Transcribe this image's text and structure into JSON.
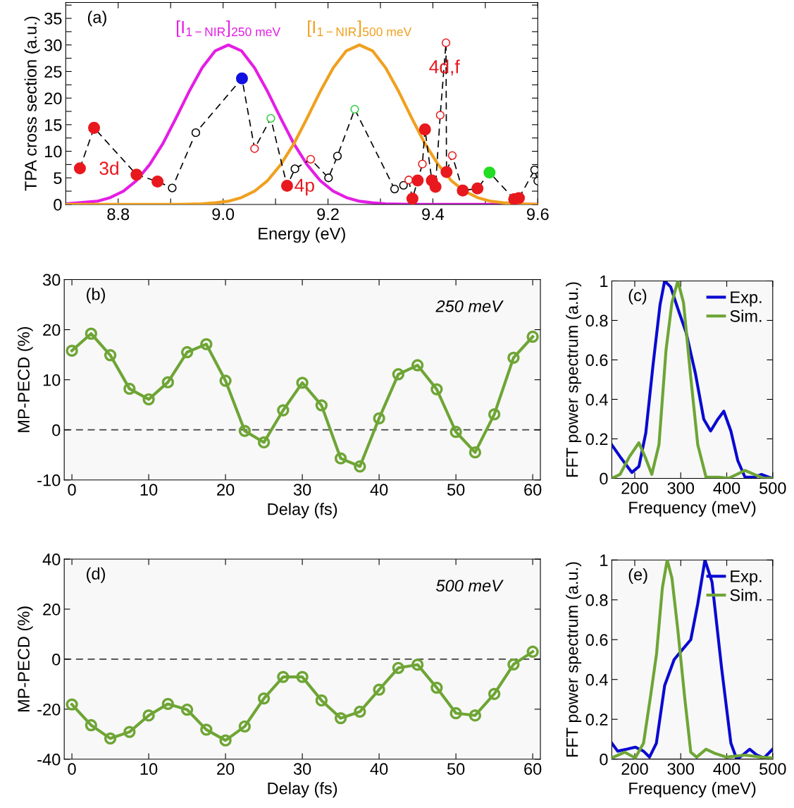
{
  "chart_data": [
    {
      "type": "line",
      "xlabel": "Energy (eV)",
      "ylabel": "TPA cross section (a.u.)",
      "xlim": [
        8.7,
        9.6
      ],
      "ylim": [
        0,
        38
      ],
      "xticks": [
        {
          "value": 8.8,
          "label": "8.8"
        },
        {
          "value": 8.9,
          "label": null
        },
        {
          "value": 9.0,
          "label": "9.0"
        },
        {
          "value": 9.1,
          "label": null
        },
        {
          "value": 9.2,
          "label": "9.2"
        },
        {
          "value": 9.3,
          "label": null
        },
        {
          "value": 9.4,
          "label": "9.4"
        },
        {
          "value": 9.5,
          "label": null
        },
        {
          "value": 9.6,
          "label": "9.6"
        }
      ],
      "yticks": [
        0,
        {
          "value": 2.5,
          "label": null
        },
        5,
        {
          "value": 7.5,
          "label": null
        },
        10,
        {
          "value": 12.5,
          "label": null
        },
        15,
        {
          "value": 17.5,
          "label": null
        },
        20,
        {
          "value": 22.5,
          "label": null
        },
        25,
        {
          "value": 27.5,
          "label": null
        },
        30,
        {
          "value": 32.5,
          "label": null
        },
        35,
        {
          "value": 37.5,
          "label": null
        }
      ],
      "legend": false,
      "annotations": [
        "(a)",
        "3d",
        "4p",
        "4d,f"
      ],
      "series": [
        {
          "name": "[I$_{1−NIR}$]$_{250 meV}$",
          "type": "line",
          "color": "#e41ee4",
          "line_style": "solid",
          "marker": "none",
          "x": [
            8.7,
            8.76,
            8.785,
            8.81,
            8.835,
            8.86,
            8.885,
            8.91,
            8.935,
            8.96,
            8.985,
            9.01,
            9.035,
            9.06,
            9.085,
            9.11,
            9.135,
            9.16,
            9.185,
            9.21,
            9.235,
            9.26,
            9.285,
            9.31,
            9.36,
            9.45,
            9.6
          ],
          "values": [
            0.1,
            0.6,
            1.3,
            2.5,
            4.5,
            7.5,
            11.4,
            16.2,
            21.2,
            25.7,
            28.9,
            30,
            28.9,
            25.7,
            21.2,
            16.2,
            11.4,
            7.5,
            4.5,
            2.5,
            1.3,
            0.6,
            0.3,
            0.1,
            0,
            0,
            0
          ]
        },
        {
          "name": "[I$_{1−NIR}$]$_{500 meV}$",
          "type": "line",
          "color": "#f0a01e",
          "line_style": "solid",
          "marker": "none",
          "x": [
            8.7,
            8.85,
            8.91,
            8.96,
            8.985,
            9.01,
            9.035,
            9.06,
            9.085,
            9.11,
            9.135,
            9.16,
            9.185,
            9.21,
            9.235,
            9.26,
            9.285,
            9.31,
            9.335,
            9.36,
            9.385,
            9.41,
            9.435,
            9.46,
            9.485,
            9.51,
            9.535,
            9.56,
            9.6
          ],
          "values": [
            0,
            0,
            0,
            0.1,
            0.3,
            0.6,
            1.3,
            2.5,
            4.5,
            7.5,
            11.4,
            16.2,
            21.2,
            25.7,
            28.9,
            30,
            28.9,
            25.7,
            21.2,
            16.2,
            11.4,
            7.5,
            4.5,
            2.5,
            1.3,
            0.6,
            0.3,
            0.1,
            0
          ]
        },
        {
          "type": "line",
          "color": "#000000",
          "line_style": "dashed",
          "marker": "circle",
          "x": [
            8.727,
            8.754,
            8.835,
            8.875,
            8.903,
            8.948,
            9.036,
            9.06,
            9.091,
            9.122,
            9.137,
            9.167,
            9.201,
            9.218,
            9.251,
            9.327,
            9.344,
            9.354,
            9.361,
            9.371,
            9.38,
            9.385,
            9.398,
            9.405,
            9.414,
            9.425,
            9.426,
            9.437,
            9.457,
            9.485,
            9.508,
            9.555,
            9.564,
            9.594,
            9.6
          ],
          "values": [
            6.8,
            14.4,
            5.6,
            4.3,
            3.1,
            13.5,
            23.7,
            10.5,
            16.2,
            3.5,
            6.7,
            8.5,
            5.0,
            9.1,
            17.9,
            2.9,
            3.6,
            4.6,
            1.1,
            4.5,
            7.6,
            14.1,
            4.5,
            3.3,
            16.8,
            30.4,
            6.1,
            9.2,
            2.6,
            3.0,
            6.0,
            1.0,
            1.2,
            6.5,
            4.4
          ],
          "colors": [
            "#e8191e",
            "#e8191e",
            "#e8191e",
            "#e8191e",
            "#000000",
            "#000000",
            "#1010e0",
            "#e8191e",
            "#2ecc40",
            "#e8191e",
            "#000000",
            "#e8191e",
            "#000000",
            "#000000",
            "#2ecc40",
            "#000000",
            "#000000",
            "#e8191e",
            "#e8191e",
            "#e8191e",
            "#e8191e",
            "#e8191e",
            "#e8191e",
            "#e8191e",
            "#e8191e",
            "#e8191e",
            "#e8191e",
            "#e8191e",
            "#e8191e",
            "#e8191e",
            "#22dd22",
            "#e8191e",
            "#e8191e",
            "#000000",
            "#000000"
          ]
        },
        {
          "type": "scatter",
          "color": "#e8191e",
          "marker": "circle",
          "x": [
            8.727,
            8.754,
            8.835,
            8.875,
            9.122,
            9.361,
            9.371,
            9.385,
            9.398,
            9.405,
            9.426,
            9.457,
            9.485,
            9.555,
            9.564
          ],
          "values": [
            6.8,
            14.4,
            5.6,
            4.3,
            3.5,
            1.1,
            4.5,
            14.1,
            4.5,
            3.3,
            6.1,
            2.6,
            3.0,
            1.0,
            1.2
          ]
        },
        {
          "type": "scatter",
          "color": "#22dd22",
          "marker": "circle",
          "x": [
            9.508
          ],
          "values": [
            6.0
          ]
        },
        {
          "type": "scatter",
          "color": "#1010e0",
          "marker": "circle",
          "x": [
            9.036
          ],
          "values": [
            23.7
          ]
        }
      ]
    },
    {
      "type": "line",
      "xlabel": "Delay (fs)",
      "ylabel": "MP-PECD (%)",
      "xlim": [
        -1,
        61
      ],
      "ylim": [
        -10,
        30
      ],
      "xticks": [
        0,
        10,
        20,
        30,
        40,
        50,
        60
      ],
      "yticks": [
        -10,
        0,
        10,
        20,
        30
      ],
      "marker": "circle",
      "line_style": "solid",
      "legend": false,
      "annotations": [
        "(b)",
        "250 meV"
      ],
      "ref_lines": [
        {
          "axis": "y",
          "value": 0,
          "color": "#404040",
          "line_style": "dashed"
        }
      ],
      "x": [
        0,
        2.5,
        5,
        7.5,
        10,
        12.5,
        15,
        17.5,
        20,
        22.5,
        25,
        27.5,
        30,
        32.5,
        35,
        37.5,
        40,
        42.5,
        45,
        47.5,
        50,
        52.5,
        55,
        57.5,
        60
      ],
      "series": [
        {
          "color": "#6ea535",
          "values": [
            15.8,
            19.2,
            14.9,
            8.2,
            6.1,
            9.5,
            15.5,
            17.1,
            9.8,
            -0.2,
            -2.5,
            3.9,
            9.4,
            4.9,
            -5.7,
            -7.3,
            2.3,
            11.1,
            12.9,
            8.1,
            -0.4,
            -4.5,
            3.1,
            14.4,
            18.6
          ]
        }
      ]
    },
    {
      "type": "line",
      "xlabel": "Frequency (meV)",
      "ylabel": "FFT power spectrum (a.u.)",
      "xlim": [
        150,
        500
      ],
      "ylim": [
        0,
        1
      ],
      "xticks": [
        200,
        300,
        400,
        500
      ],
      "yticks": [
        0,
        0.2,
        0.4,
        0.6,
        0.8,
        1
      ],
      "marker": "none",
      "line_style": "solid",
      "legend": "top right",
      "annotations": [
        "(c)"
      ],
      "series": [
        {
          "name": "Exp.",
          "color": "#0a0ad2",
          "x": [
            150,
            168,
            193.6,
            209,
            224,
            240,
            255,
            265,
            278,
            293.6,
            311.5,
            332,
            350,
            365,
            380.8,
            393.6,
            409,
            424,
            439.7,
            460,
            475.6,
            491,
            500
          ],
          "values": [
            0.17,
            0.11,
            0.03,
            0.06,
            0.23,
            0.58,
            0.88,
            1.0,
            0.97,
            0.86,
            0.74,
            0.53,
            0.3,
            0.24,
            0.3,
            0.34,
            0.24,
            0.09,
            0.006,
            0.006,
            0.02,
            0.006,
            0
          ]
        },
        {
          "name": "Sim.",
          "color": "#6ea535",
          "x": [
            150,
            168,
            188.5,
            209,
            224,
            237,
            252.6,
            268,
            280.8,
            293.6,
            306,
            321.8,
            337,
            355,
            383,
            404,
            421.8,
            439.7,
            460,
            480.8,
            500
          ],
          "values": [
            0,
            0.02,
            0.11,
            0.18,
            0.1,
            0.02,
            0.17,
            0.65,
            0.89,
            1.0,
            0.89,
            0.51,
            0.17,
            0.006,
            0.006,
            0,
            0.02,
            0.04,
            0.02,
            0,
            0
          ]
        }
      ]
    },
    {
      "type": "line",
      "xlabel": "Delay (fs)",
      "ylabel": "MP-PECD (%)",
      "xlim": [
        -1,
        61
      ],
      "ylim": [
        -40,
        40
      ],
      "xticks": [
        0,
        10,
        20,
        30,
        40,
        50,
        60
      ],
      "yticks": [
        -40,
        -20,
        0,
        20,
        40
      ],
      "marker": "circle",
      "line_style": "solid",
      "legend": false,
      "annotations": [
        "(d)",
        "500 meV"
      ],
      "ref_lines": [
        {
          "axis": "y",
          "value": 0,
          "color": "#404040",
          "line_style": "dashed"
        }
      ],
      "x": [
        0,
        2.5,
        5,
        7.5,
        10,
        12.5,
        15,
        17.5,
        20,
        22.5,
        25,
        27.5,
        30,
        32.5,
        35,
        37.5,
        40,
        42.5,
        45,
        47.5,
        50,
        52.5,
        55,
        57.5,
        60
      ],
      "series": [
        {
          "color": "#6ea535",
          "values": [
            -18.1,
            -26.4,
            -31.7,
            -29.1,
            -22.5,
            -17.9,
            -20.2,
            -28.2,
            -32.5,
            -26.9,
            -15.7,
            -7.1,
            -7.1,
            -16.5,
            -23.6,
            -21.0,
            -12.2,
            -3.5,
            -2.2,
            -11.4,
            -21.6,
            -22.5,
            -13.9,
            -2.1,
            3.0
          ]
        }
      ]
    },
    {
      "type": "line",
      "xlabel": "Frequency (meV)",
      "ylabel": "FFT power spectrum (a.u.)",
      "xlim": [
        150,
        500
      ],
      "ylim": [
        0,
        1
      ],
      "xticks": [
        200,
        300,
        400,
        500
      ],
      "yticks": [
        0,
        0.2,
        0.4,
        0.6,
        0.8,
        1
      ],
      "marker": "none",
      "line_style": "solid",
      "legend": "top right",
      "annotations": [
        "(e)"
      ],
      "series": [
        {
          "name": "Exp.",
          "color": "#0a0ad2",
          "x": [
            150,
            162.8,
            183,
            201,
            219,
            232,
            247,
            265,
            285.6,
            300,
            321.8,
            337,
            352.6,
            368,
            388.7,
            409,
            421.8,
            434.6,
            450,
            465.6,
            481,
            500
          ],
          "values": [
            0.08,
            0.04,
            0.05,
            0.06,
            0.04,
            0.01,
            0.08,
            0.37,
            0.5,
            0.54,
            0.6,
            0.78,
            1.0,
            0.89,
            0.46,
            0.08,
            0,
            0.02,
            0.05,
            0.02,
            0.006,
            0.05
          ]
        },
        {
          "name": "Sim.",
          "color": "#6ea535",
          "x": [
            150,
            178,
            201,
            219,
            234.6,
            247.4,
            260,
            270.5,
            280.8,
            293.6,
            309,
            321.8,
            334.6,
            355,
            373,
            398.7,
            439.7,
            475.6,
            500
          ],
          "values": [
            0.006,
            0.035,
            0.006,
            0.08,
            0.32,
            0.53,
            0.86,
            1.0,
            0.91,
            0.65,
            0.3,
            0.035,
            0.01,
            0.05,
            0.03,
            0.01,
            0.02,
            0.01,
            0.006
          ]
        }
      ]
    }
  ]
}
